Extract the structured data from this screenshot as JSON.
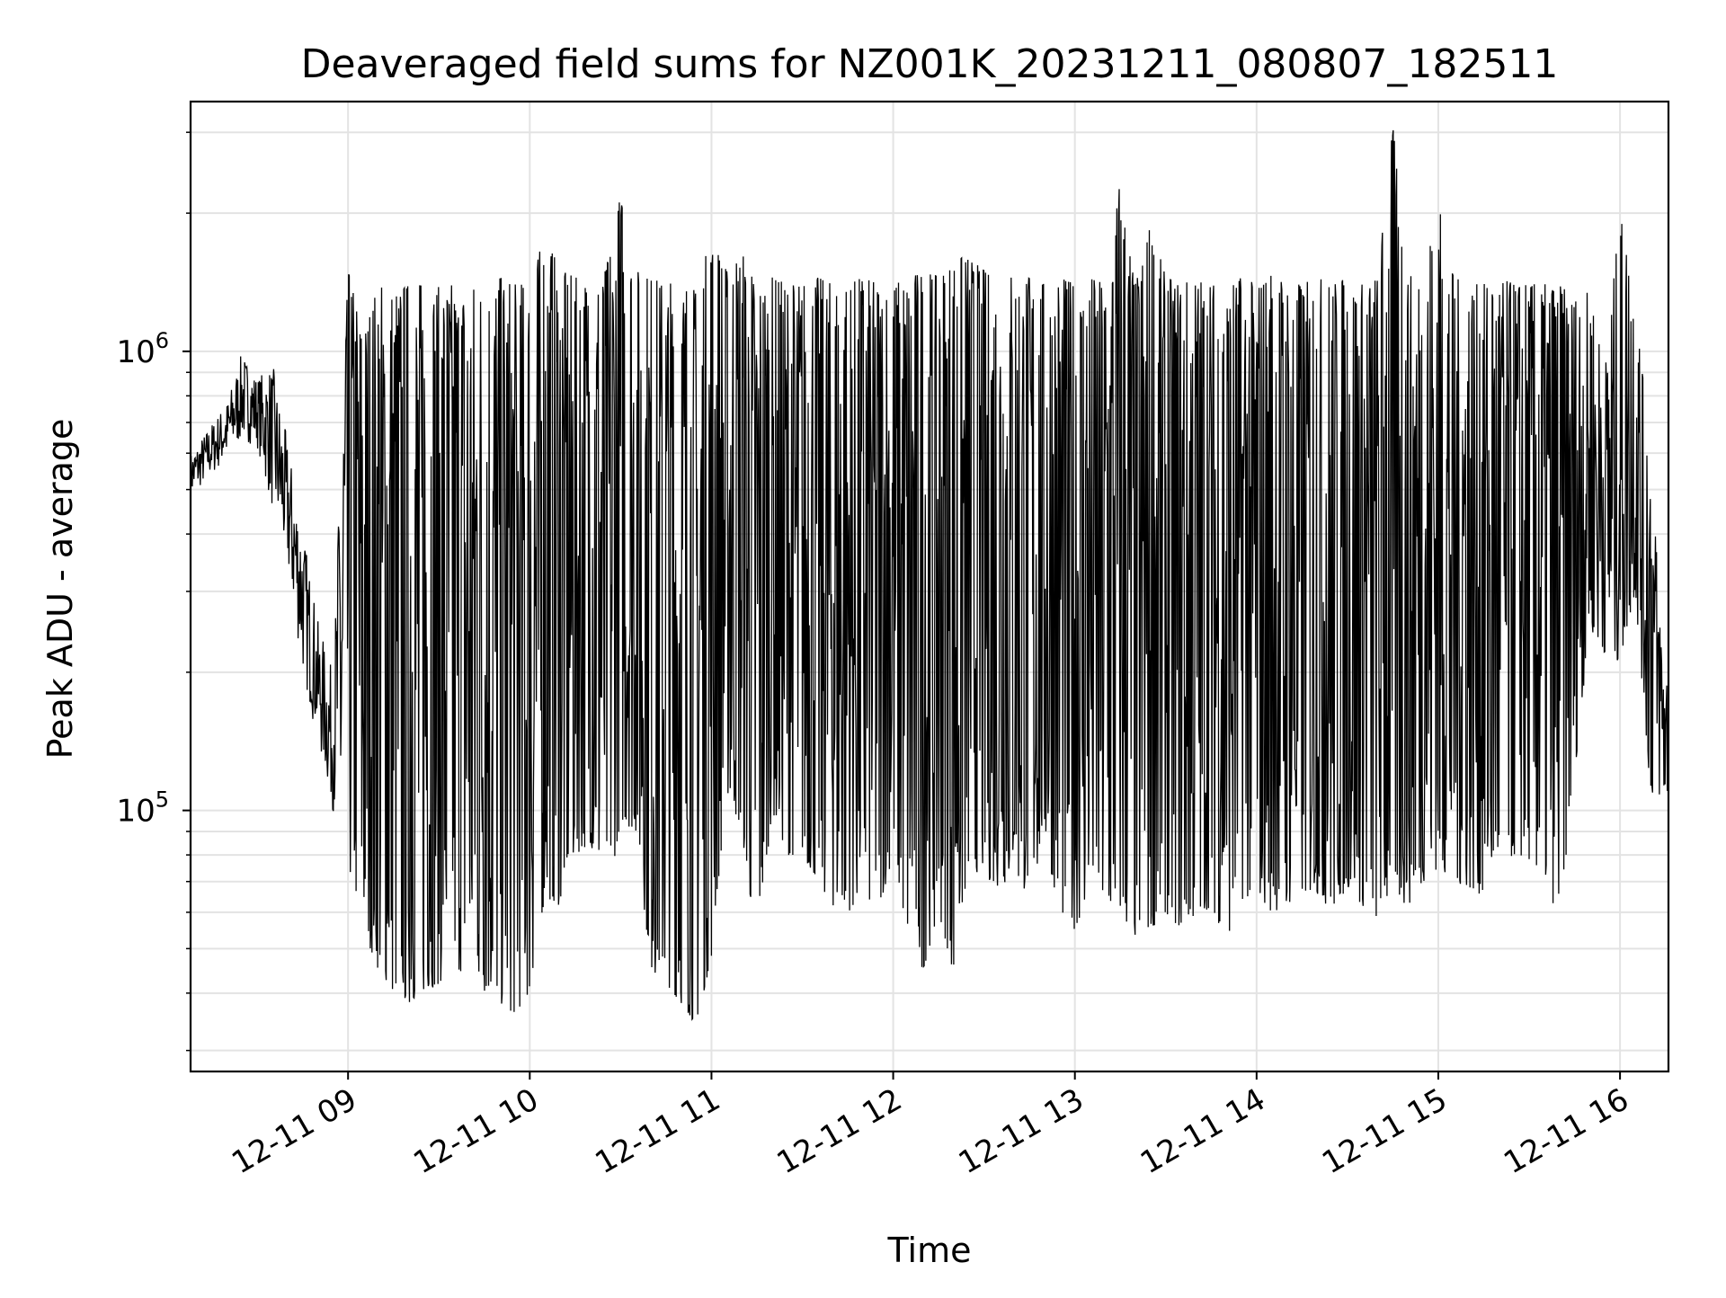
{
  "chart_data": {
    "type": "line",
    "title": "Deaveraged field sums for NZ001K_20231211_080807_182511",
    "xlabel": "Time",
    "ylabel": "Peak ADU - average",
    "yscale": "log",
    "ylim": [
      27000,
      3500000
    ],
    "xlim": [
      "2023-12-11 08:08",
      "2023-12-11 16:16"
    ],
    "x_ticks": [
      "2023-12-11 09:00",
      "2023-12-11 10:00",
      "2023-12-11 11:00",
      "2023-12-11 12:00",
      "2023-12-11 13:00",
      "2023-12-11 14:00",
      "2023-12-11 15:00",
      "2023-12-11 16:00"
    ],
    "x_tick_labels": [
      "12-11 09",
      "12-11 10",
      "12-11 11",
      "12-11 12",
      "12-11 13",
      "12-11 14",
      "12-11 15",
      "12-11 16"
    ],
    "y_ticks": [
      100000,
      1000000
    ],
    "y_tick_labels": [
      {
        "base": "10",
        "exp": "5"
      },
      {
        "base": "10",
        "exp": "6"
      }
    ],
    "grid": true,
    "legend": "none",
    "series_color": "#000000",
    "series": [
      {
        "x": [
          "2023-12-11 08:08",
          "2023-12-11 08:20",
          "2023-12-11 08:25",
          "2023-12-11 08:30",
          "2023-12-11 08:35",
          "2023-12-11 08:40",
          "2023-12-11 08:45",
          "2023-12-11 08:50",
          "2023-12-11 08:55",
          "2023-12-11 09:00",
          "2023-12-11 09:05",
          "2023-12-11 09:10",
          "2023-12-11 09:15",
          "2023-12-11 09:20",
          "2023-12-11 09:25",
          "2023-12-11 09:30",
          "2023-12-11 09:35",
          "2023-12-11 09:40",
          "2023-12-11 09:45",
          "2023-12-11 09:50",
          "2023-12-11 09:55",
          "2023-12-11 10:00",
          "2023-12-11 10:05",
          "2023-12-11 10:10",
          "2023-12-11 10:15",
          "2023-12-11 10:20",
          "2023-12-11 10:25",
          "2023-12-11 10:30",
          "2023-12-11 10:35",
          "2023-12-11 10:40",
          "2023-12-11 10:45",
          "2023-12-11 10:50",
          "2023-12-11 10:55",
          "2023-12-11 11:00",
          "2023-12-11 11:05",
          "2023-12-11 11:10",
          "2023-12-11 11:15",
          "2023-12-11 11:20",
          "2023-12-11 11:25",
          "2023-12-11 11:30",
          "2023-12-11 11:35",
          "2023-12-11 11:40",
          "2023-12-11 11:45",
          "2023-12-11 11:50",
          "2023-12-11 11:55",
          "2023-12-11 12:00",
          "2023-12-11 12:05",
          "2023-12-11 12:10",
          "2023-12-11 12:15",
          "2023-12-11 12:20",
          "2023-12-11 12:25",
          "2023-12-11 12:30",
          "2023-12-11 12:35",
          "2023-12-11 12:40",
          "2023-12-11 12:45",
          "2023-12-11 12:50",
          "2023-12-11 12:55",
          "2023-12-11 13:00",
          "2023-12-11 13:05",
          "2023-12-11 13:10",
          "2023-12-11 13:15",
          "2023-12-11 13:20",
          "2023-12-11 13:25",
          "2023-12-11 13:30",
          "2023-12-11 13:35",
          "2023-12-11 13:40",
          "2023-12-11 13:45",
          "2023-12-11 13:50",
          "2023-12-11 13:55",
          "2023-12-11 14:00",
          "2023-12-11 14:05",
          "2023-12-11 14:10",
          "2023-12-11 14:15",
          "2023-12-11 14:20",
          "2023-12-11 14:25",
          "2023-12-11 14:30",
          "2023-12-11 14:35",
          "2023-12-11 14:40",
          "2023-12-11 14:45",
          "2023-12-11 14:50",
          "2023-12-11 14:55",
          "2023-12-11 15:00",
          "2023-12-11 15:05",
          "2023-12-11 15:10",
          "2023-12-11 15:15",
          "2023-12-11 15:20",
          "2023-12-11 15:25",
          "2023-12-11 15:30",
          "2023-12-11 15:35",
          "2023-12-11 15:40",
          "2023-12-11 15:45",
          "2023-12-11 15:50",
          "2023-12-11 15:55",
          "2023-12-11 16:00",
          "2023-12-11 16:05",
          "2023-12-11 16:10",
          "2023-12-11 16:15"
        ],
        "y_low": [
          480000,
          580000,
          640000,
          620000,
          450000,
          330000,
          200000,
          140000,
          100000,
          75000,
          55000,
          45000,
          40000,
          38000,
          40000,
          42000,
          45000,
          44000,
          40000,
          38000,
          36000,
          40000,
          65000,
          62000,
          80000,
          85000,
          60000,
          95000,
          90000,
          45000,
          42000,
          38000,
          34000,
          48000,
          110000,
          90000,
          48000,
          100000,
          80000,
          80000,
          70000,
          62000,
          60000,
          65000,
          60000,
          80000,
          50000,
          45000,
          60000,
          44000,
          75000,
          72000,
          68000,
          72000,
          65000,
          85000,
          60000,
          55000,
          66000,
          55000,
          58000,
          52000,
          55000,
          60000,
          55000,
          58000,
          62000,
          52000,
          64000,
          66000,
          60000,
          62000,
          65000,
          66000,
          60000,
          68000,
          62000,
          58000,
          64000,
          62000,
          70000,
          75000,
          70000,
          68000,
          65000,
          72000,
          80000,
          78000,
          70000,
          58000,
          120000,
          250000,
          220000,
          210000,
          300000,
          110000,
          95000
        ],
        "y_high": [
          600000,
          780000,
          1000000,
          880000,
          950000,
          640000,
          420000,
          260000,
          200000,
          1500000,
          1100000,
          1400000,
          1350000,
          1400000,
          1400000,
          1380000,
          1400000,
          1380000,
          1400000,
          1450000,
          1400000,
          1400000,
          1800000,
          1500000,
          1450000,
          1400000,
          1500000,
          2200000,
          1500000,
          1450000,
          1400000,
          1450000,
          1350000,
          1800000,
          1500000,
          1650000,
          1400000,
          1450000,
          1400000,
          1400000,
          1450000,
          1400000,
          1400000,
          1450000,
          1400000,
          1400000,
          1450000,
          1500000,
          1450000,
          1600000,
          1600000,
          1500000,
          1400000,
          1500000,
          1450000,
          1400000,
          1450000,
          1400000,
          1450000,
          1400000,
          2400000,
          1400000,
          1900000,
          1450000,
          1400000,
          1450000,
          1400000,
          1400000,
          1450000,
          1400000,
          1500000,
          1400000,
          1400000,
          1450000,
          1400000,
          1450000,
          1400000,
          1450000,
          3100000,
          1450000,
          1500000,
          2100000,
          1450000,
          1400000,
          1400000,
          1450000,
          1400000,
          1400000,
          1400000,
          1400000,
          1300000,
          1350000,
          900000,
          2000000,
          1300000,
          600000,
          220000
        ]
      }
    ]
  }
}
